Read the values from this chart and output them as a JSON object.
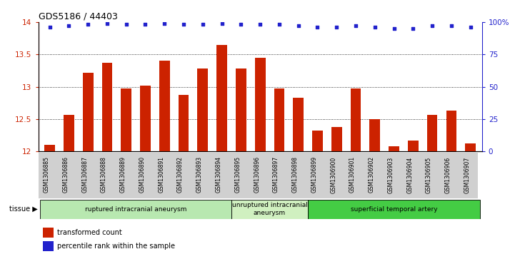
{
  "title": "GDS5186 / 44403",
  "samples": [
    "GSM1306885",
    "GSM1306886",
    "GSM1306887",
    "GSM1306888",
    "GSM1306889",
    "GSM1306890",
    "GSM1306891",
    "GSM1306892",
    "GSM1306893",
    "GSM1306894",
    "GSM1306895",
    "GSM1306896",
    "GSM1306897",
    "GSM1306898",
    "GSM1306899",
    "GSM1306900",
    "GSM1306901",
    "GSM1306902",
    "GSM1306903",
    "GSM1306904",
    "GSM1306905",
    "GSM1306906",
    "GSM1306907"
  ],
  "bar_values": [
    12.1,
    12.57,
    13.22,
    13.37,
    12.97,
    13.02,
    13.4,
    12.87,
    13.28,
    13.65,
    13.28,
    13.45,
    12.97,
    12.83,
    12.32,
    12.38,
    12.97,
    12.5,
    12.08,
    12.17,
    12.57,
    12.63,
    12.13
  ],
  "percentile_values": [
    96,
    97,
    98,
    99,
    98,
    98,
    99,
    98,
    98,
    99,
    98,
    98,
    98,
    97,
    96,
    96,
    97,
    96,
    95,
    95,
    97,
    97,
    96
  ],
  "bar_color": "#cc2200",
  "dot_color": "#2222cc",
  "ylim_left": [
    12,
    14
  ],
  "ylim_right": [
    0,
    100
  ],
  "yticks_left": [
    12,
    12.5,
    13,
    13.5,
    14
  ],
  "yticks_right": [
    0,
    25,
    50,
    75,
    100
  ],
  "ytick_labels_right": [
    "0",
    "25",
    "50",
    "75",
    "100%"
  ],
  "groups": [
    {
      "label": "ruptured intracranial aneurysm",
      "start": 0,
      "end": 10,
      "color": "#b8e8b0"
    },
    {
      "label": "unruptured intracranial\naneurysm",
      "start": 10,
      "end": 14,
      "color": "#d0f0c0"
    },
    {
      "label": "superficial temporal artery",
      "start": 14,
      "end": 23,
      "color": "#44cc44"
    }
  ],
  "tissue_label": "tissue",
  "legend_bar_label": "transformed count",
  "legend_dot_label": "percentile rank within the sample",
  "plot_bg_color": "#ffffff"
}
